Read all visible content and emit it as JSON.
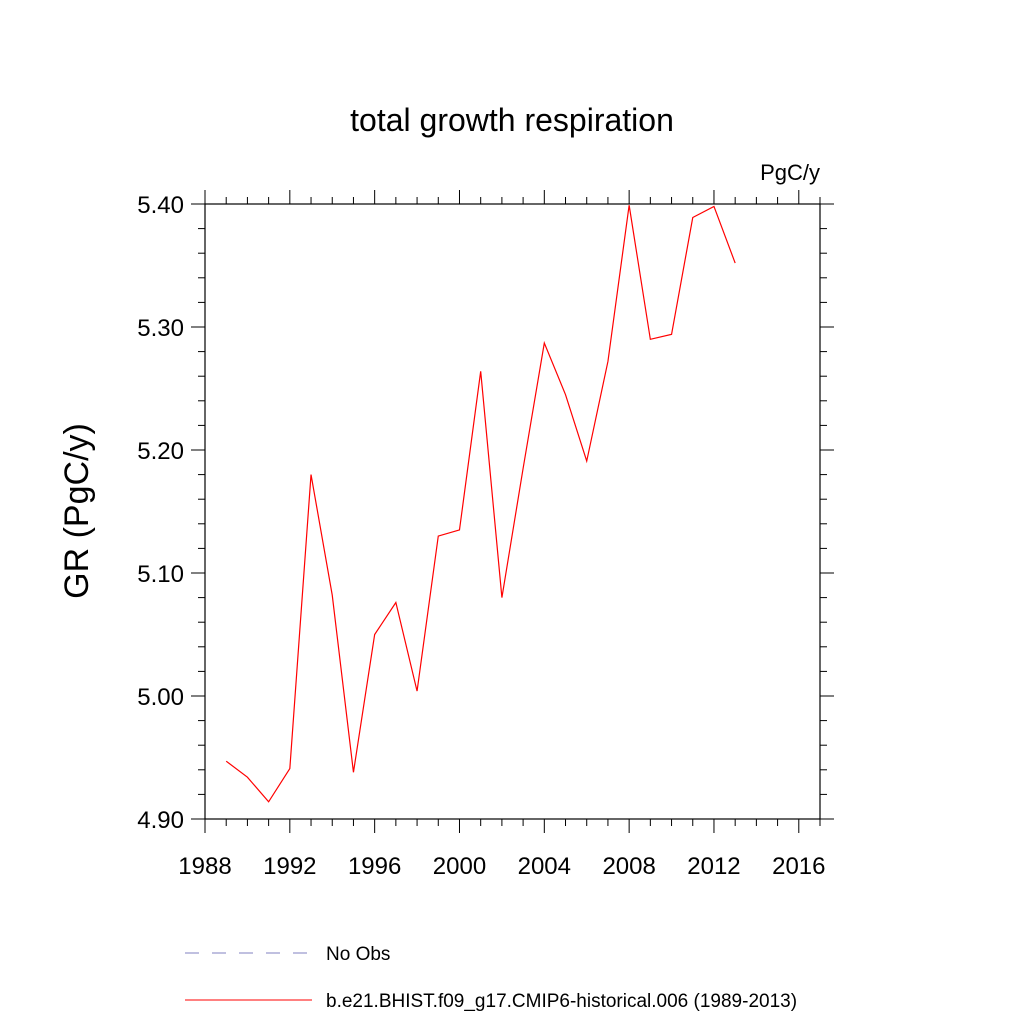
{
  "chart_data": {
    "type": "line",
    "title": "total growth respiration",
    "units": "PgC/y",
    "ylabel": "GR  (PgC/y)",
    "xlabel": "",
    "xlim": [
      1988,
      2017
    ],
    "ylim": [
      4.9,
      5.4
    ],
    "x_ticks": [
      1988,
      1992,
      1996,
      2000,
      2004,
      2008,
      2012,
      2016
    ],
    "x_tick_labels": [
      "1988",
      "1992",
      "1996",
      "2000",
      "2004",
      "2008",
      "2012",
      "2016"
    ],
    "y_ticks": [
      4.9,
      5.0,
      5.1,
      5.2,
      5.3,
      5.4
    ],
    "y_tick_labels": [
      "4.90",
      "5.00",
      "5.10",
      "5.20",
      "5.30",
      "5.40"
    ],
    "grid": false,
    "legend_position": "bottom",
    "series": [
      {
        "name": "b.e21.BHIST.f09_g17.CMIP6-historical.006 (1989-2013)",
        "color": "#ff0000",
        "style": "solid",
        "x": [
          1989,
          1990,
          1991,
          1992,
          1993,
          1994,
          1995,
          1996,
          1997,
          1998,
          1999,
          2000,
          2001,
          2002,
          2003,
          2004,
          2005,
          2006,
          2007,
          2008,
          2009,
          2010,
          2011,
          2012,
          2013
        ],
        "y": [
          4.947,
          4.934,
          4.914,
          4.941,
          5.18,
          5.082,
          4.938,
          5.05,
          5.076,
          5.004,
          5.13,
          5.135,
          5.264,
          5.08,
          5.185,
          5.287,
          5.245,
          5.191,
          5.272,
          5.399,
          5.29,
          5.294,
          5.389,
          5.398,
          5.352
        ]
      }
    ],
    "legend": [
      {
        "label": "No Obs",
        "color": "#8080c0",
        "style": "dashed"
      },
      {
        "label": "b.e21.BHIST.f09_g17.CMIP6-historical.006 (1989-2013)",
        "color": "#ff0000",
        "style": "solid"
      }
    ]
  }
}
